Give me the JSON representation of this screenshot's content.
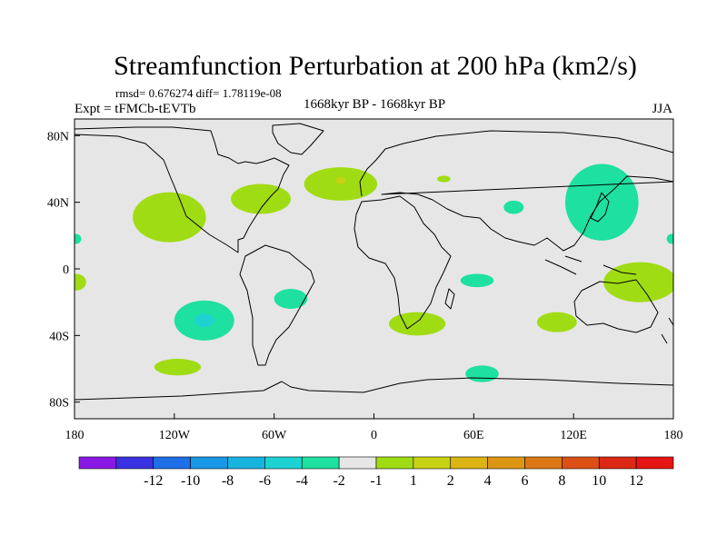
{
  "chart_data": {
    "type": "heatmap",
    "title": "Streamfunction Perturbation at 200 hPa (km2/s)",
    "stats": "rmsd= 0.676274 diff= 1.78119e-08",
    "experiment": "Expt = tFMCb-tEVTb",
    "period": "1668kyr BP - 1668kyr BP",
    "season": "JJA",
    "xlim": [
      -180,
      180
    ],
    "ylim": [
      -90,
      90
    ],
    "x_ticks": [
      {
        "value": -180,
        "label": "180"
      },
      {
        "value": -120,
        "label": "120W"
      },
      {
        "value": -60,
        "label": "60W"
      },
      {
        "value": 0,
        "label": "0"
      },
      {
        "value": 60,
        "label": "60E"
      },
      {
        "value": 120,
        "label": "120E"
      },
      {
        "value": 180,
        "label": "180"
      }
    ],
    "y_ticks": [
      {
        "value": 80,
        "label": "80N"
      },
      {
        "value": 40,
        "label": "40N"
      },
      {
        "value": 0,
        "label": "0"
      },
      {
        "value": -40,
        "label": "40S"
      },
      {
        "value": -80,
        "label": "80S"
      }
    ],
    "colorbar": {
      "colors": [
        "#8a19e6",
        "#3a32e0",
        "#1e6fe8",
        "#1898e6",
        "#18b4e0",
        "#1ed2d2",
        "#1ee0a0",
        "#e6e6e6",
        "#a0dc14",
        "#c8d214",
        "#dcb414",
        "#dc9614",
        "#dc7814",
        "#dc5014",
        "#dc2814",
        "#e61414"
      ],
      "labels": [
        "-12",
        "-10",
        "-8",
        "-6",
        "-4",
        "-2",
        "-1",
        "1",
        "2",
        "4",
        "6",
        "8",
        "10",
        "12"
      ]
    },
    "regions": [
      {
        "level": "2",
        "color": "#a0dc14",
        "lon": -123,
        "lat": 31,
        "rx": 22,
        "ry": 15
      },
      {
        "level": "2",
        "color": "#a0dc14",
        "lon": -68,
        "lat": 42,
        "rx": 18,
        "ry": 9
      },
      {
        "level": "2",
        "color": "#a0dc14",
        "lon": -20,
        "lat": 51,
        "rx": 22,
        "ry": 10
      },
      {
        "level": "2",
        "color": "#a0dc14",
        "lon": 26,
        "lat": -33,
        "rx": 17,
        "ry": 7
      },
      {
        "level": "2",
        "color": "#a0dc14",
        "lon": 110,
        "lat": -32,
        "rx": 12,
        "ry": 6
      },
      {
        "level": "2",
        "color": "#a0dc14",
        "lon": 160,
        "lat": -8,
        "rx": 22,
        "ry": 12
      },
      {
        "level": "2",
        "color": "#a0dc14",
        "lon": -118,
        "lat": -59,
        "rx": 14,
        "ry": 5
      },
      {
        "level": "2",
        "color": "#a0dc14",
        "lon": -179,
        "lat": -8,
        "rx": 6,
        "ry": 5
      },
      {
        "level": "2",
        "color": "#a0dc14",
        "lon": 42,
        "lat": 54,
        "rx": 4,
        "ry": 2
      },
      {
        "level": "4",
        "color": "#c8d214",
        "lon": -20,
        "lat": 53,
        "rx": 3,
        "ry": 2
      },
      {
        "level": "-1",
        "color": "#1ee0a0",
        "lon": -102,
        "lat": -31,
        "rx": 18,
        "ry": 12
      },
      {
        "level": "-1",
        "color": "#1ee0a0",
        "lon": -50,
        "lat": -18,
        "rx": 10,
        "ry": 6
      },
      {
        "level": "-1",
        "color": "#1ee0a0",
        "lon": 62,
        "lat": -7,
        "rx": 10,
        "ry": 4
      },
      {
        "level": "-1",
        "color": "#1ee0a0",
        "lon": 84,
        "lat": 37,
        "rx": 6,
        "ry": 4
      },
      {
        "level": "-1",
        "color": "#1ee0a0",
        "lon": 65,
        "lat": -63,
        "rx": 10,
        "ry": 5
      },
      {
        "level": "-1",
        "color": "#1ee0a0",
        "lon": 137,
        "lat": 40,
        "rx": 22,
        "ry": 23
      },
      {
        "level": "-1",
        "color": "#1ee0a0",
        "lon": -179,
        "lat": 18,
        "rx": 3,
        "ry": 3
      },
      {
        "level": "-1",
        "color": "#1ee0a0",
        "lon": 179,
        "lat": 18,
        "rx": 3,
        "ry": 3
      },
      {
        "level": "-2",
        "color": "#1ed2d2",
        "lon": -102,
        "lat": -31,
        "rx": 6,
        "ry": 4
      }
    ]
  }
}
